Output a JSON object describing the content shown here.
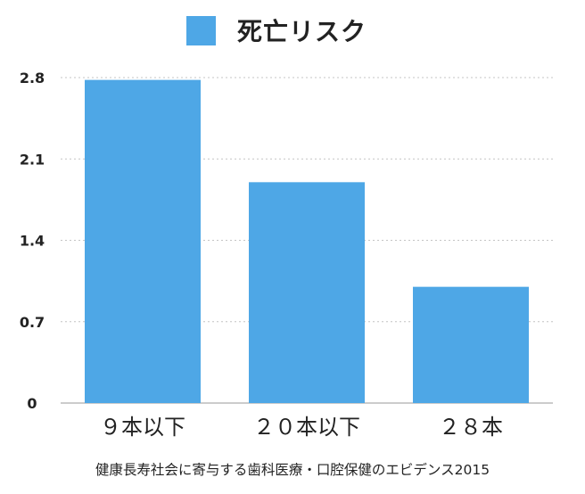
{
  "chart_data": {
    "type": "bar",
    "categories": [
      "９本以下",
      "２０本以下",
      "２８本"
    ],
    "series": [
      {
        "name": "死亡リスク",
        "values": [
          2.78,
          1.9,
          1.0
        ],
        "color": "#4ea7e6"
      }
    ],
    "ylim": [
      0,
      2.8
    ],
    "yticks": [
      "0",
      "0.7",
      "1.4",
      "2.1",
      "2.8"
    ],
    "ytick_values": [
      0,
      0.7,
      1.4,
      2.1,
      2.8
    ],
    "grid": true,
    "legend_position": "top-center",
    "source": "健康長寿社会に寄与する歯科医療・口腔保健のエビデンス2015"
  }
}
